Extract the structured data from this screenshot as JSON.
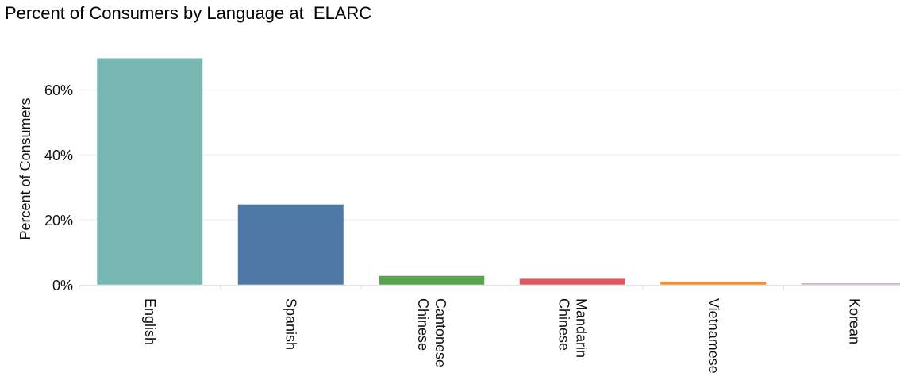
{
  "chart_data": {
    "type": "bar",
    "title": "Percent of Consumers by Language at  ELARC",
    "xlabel": "",
    "ylabel": "Percent of Consumers",
    "categories": [
      [
        "English"
      ],
      [
        "Spanish"
      ],
      [
        "Cantonese",
        "Chinese"
      ],
      [
        "Mandarin",
        "Chinese"
      ],
      [
        "Vietnamese"
      ],
      [
        "Korean"
      ]
    ],
    "values": [
      69.7,
      24.7,
      2.7,
      1.8,
      0.9,
      0.4
    ],
    "colors": [
      "#76b7b2",
      "#4e79a7",
      "#59a14f",
      "#e15759",
      "#f28e2b",
      "#d4a6c8"
    ],
    "yticks": [
      0,
      20,
      40,
      60
    ],
    "ytick_labels": [
      "0%",
      "20%",
      "40%",
      "60%"
    ],
    "ylim": [
      -2.5,
      73
    ],
    "grid": true,
    "legend": "none"
  }
}
